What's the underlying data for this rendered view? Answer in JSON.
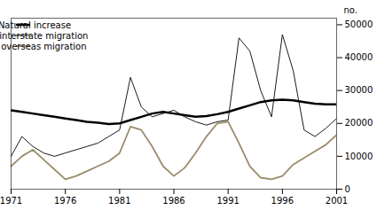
{
  "chart_data": {
    "type": "line",
    "ylabel": "no.",
    "x": [
      1971,
      1972,
      1973,
      1974,
      1975,
      1976,
      1977,
      1978,
      1979,
      1980,
      1981,
      1982,
      1983,
      1984,
      1985,
      1986,
      1987,
      1988,
      1989,
      1990,
      1991,
      1992,
      1993,
      1994,
      1995,
      1996,
      1997,
      1998,
      1999,
      2000,
      2001
    ],
    "series": [
      {
        "name": "Natural increase",
        "color": "#000000",
        "values": [
          24000,
          23500,
          23000,
          22500,
          22000,
          21500,
          21000,
          20500,
          20200,
          19800,
          20000,
          21000,
          22000,
          23000,
          23500,
          23000,
          22500,
          22000,
          22200,
          22800,
          23500,
          24500,
          25500,
          26500,
          27000,
          27200,
          27000,
          26500,
          26000,
          25800,
          25800
        ]
      },
      {
        "name": "Net interstate migration",
        "color": "#000000",
        "values": [
          10000,
          16000,
          13000,
          11000,
          10000,
          11000,
          12000,
          13000,
          14000,
          16000,
          18000,
          34000,
          25000,
          22000,
          23000,
          24000,
          22000,
          20500,
          19500,
          20500,
          21000,
          46000,
          42000,
          30000,
          22000,
          47000,
          36000,
          18000,
          16000,
          18500,
          21500
        ]
      },
      {
        "name": "Net overseas migration",
        "color": "#9b8c6a",
        "values": [
          7000,
          10000,
          12000,
          9000,
          6000,
          3000,
          4000,
          5500,
          7000,
          8500,
          11000,
          19000,
          18000,
          13000,
          7000,
          4000,
          6500,
          11000,
          16000,
          20000,
          20500,
          14000,
          7000,
          3500,
          3000,
          4000,
          7500,
          9500,
          11500,
          13500,
          16500
        ]
      }
    ],
    "xlim": [
      1971,
      2001
    ],
    "xticks": [
      1971,
      1976,
      1981,
      1986,
      1991,
      1996,
      2001
    ],
    "ylim": [
      0,
      52000
    ],
    "yticks": [
      0,
      10000,
      20000,
      30000,
      40000,
      50000
    ],
    "grid": false,
    "legend": "upper left"
  }
}
